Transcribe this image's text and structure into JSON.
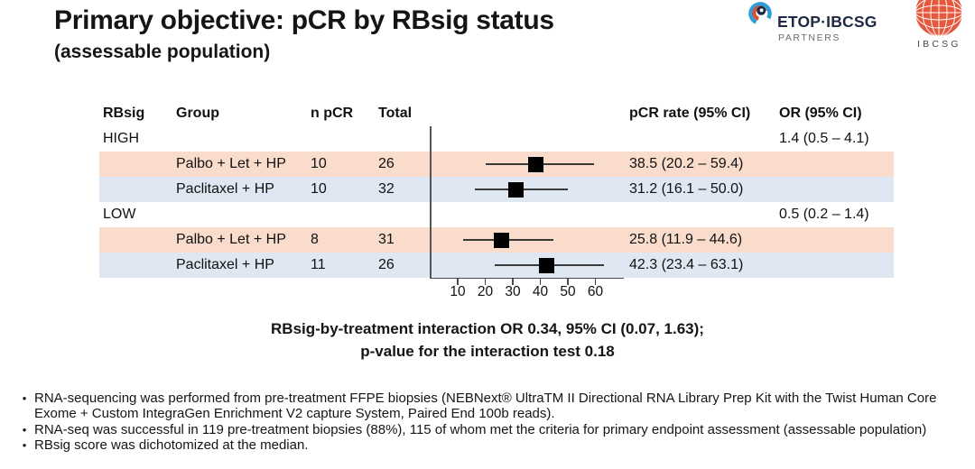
{
  "header": {
    "title": "Primary objective: pCR by RBsig status",
    "subtitle": "(assessable population)"
  },
  "logos": {
    "etop": {
      "name": "ETOP·IBCSG",
      "sub": "PARTNERS"
    },
    "ibcsg": {
      "label": "IBCSG"
    }
  },
  "table": {
    "columns": {
      "rbsig": "RBsig",
      "group": "Group",
      "n_pcr": "n pCR",
      "total": "Total",
      "rate": "pCR rate (95% CI)",
      "or": "OR (95% CI)"
    }
  },
  "chart_data": {
    "type": "scatter",
    "variant": "forest-plot",
    "xlim": [
      0,
      70
    ],
    "ticks": [
      10,
      20,
      30,
      40,
      50,
      60
    ],
    "grid": false,
    "rows": [
      {
        "kind": "section",
        "rbsig": "HIGH",
        "or": "1.4 (0.5 – 4.1)"
      },
      {
        "kind": "data",
        "shade": "salmon",
        "group": "Palbo + Let + HP",
        "n_pcr": "10",
        "total": "26",
        "rate": "38.5 (20.2 – 59.4)",
        "est": 38.5,
        "ci_low": 20.2,
        "ci_high": 59.4
      },
      {
        "kind": "data",
        "shade": "blue",
        "group": "Paclitaxel + HP",
        "n_pcr": "10",
        "total": "32",
        "rate": "31.2 (16.1 – 50.0)",
        "est": 31.2,
        "ci_low": 16.1,
        "ci_high": 50.0
      },
      {
        "kind": "section",
        "rbsig": "LOW",
        "or": "0.5 (0.2 – 1.4)"
      },
      {
        "kind": "data",
        "shade": "salmon",
        "group": "Palbo + Let + HP",
        "n_pcr": "8",
        "total": "31",
        "rate": "25.8 (11.9 – 44.6)",
        "est": 25.8,
        "ci_low": 11.9,
        "ci_high": 44.6
      },
      {
        "kind": "data",
        "shade": "blue",
        "group": "Paclitaxel + HP",
        "n_pcr": "11",
        "total": "26",
        "rate": "42.3 (23.4 – 63.1)",
        "est": 42.3,
        "ci_low": 23.4,
        "ci_high": 63.1
      }
    ]
  },
  "colors": {
    "row_salmon": "#f9dccc",
    "row_blue": "#dfe8f2",
    "marker": "#000000",
    "ci_line": "#3a3a3a",
    "axis": "#4a4a4a",
    "etop_navy": "#1d2a44",
    "etop_blue": "#2e9fd9",
    "etop_red": "#d94f38",
    "ibcsg_orange": "#e7573c"
  },
  "interaction": {
    "line1": "RBsig-by-treatment interaction OR 0.34, 95% CI (0.07, 1.63);",
    "line2": "p-value for the interaction test 0.18"
  },
  "footnotes": [
    "RNA-sequencing was performed from pre-treatment FFPE biopsies (NEBNext® UltraTM II Directional RNA Library Prep Kit with the Twist Human Core Exome + Custom IntegraGen Enrichment V2 capture System, Paired End 100b reads).",
    "RNA-seq was successful in 119 pre-treatment biopsies (88%), 115 of whom met the criteria for primary endpoint assessment (assessable population)",
    "RBsig score was dichotomized at the median."
  ]
}
